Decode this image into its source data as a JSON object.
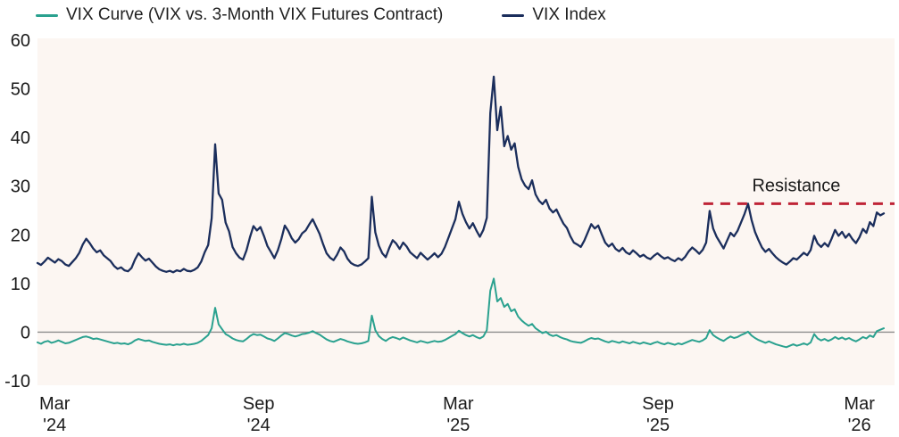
{
  "legend": {
    "items": [
      {
        "label": "VIX Curve (VIX vs. 3-Month VIX Futures Contract)",
        "color": "#2aa18f"
      },
      {
        "label": "VIX Index",
        "color": "#1b2e5c"
      }
    ]
  },
  "colors": {
    "page_bg": "#ffffff",
    "plot_bg": "#fcf6f2",
    "axis_text": "#1a1a1a",
    "zero_line": "#8d8d8d",
    "vix_curve": "#2aa18f",
    "vix_index": "#1b2e5c",
    "resistance": "#bf2437"
  },
  "chart_data": {
    "type": "line",
    "title": "",
    "xlabel": "",
    "ylabel": "",
    "ylim": [
      -10,
      60
    ],
    "grid": false,
    "legend_position": "top",
    "zero_line": 0,
    "y_ticks": [
      60,
      50,
      40,
      30,
      20,
      10,
      0,
      -10
    ],
    "x_ticks": [
      {
        "line1": "Mar",
        "line2": "'24",
        "frac": 0.02
      },
      {
        "line1": "Sep",
        "line2": "'24",
        "frac": 0.258
      },
      {
        "line1": "Mar",
        "line2": "'25",
        "frac": 0.491
      },
      {
        "line1": "Sep",
        "line2": "'25",
        "frac": 0.724
      },
      {
        "line1": "Mar",
        "line2": "'26",
        "frac": 0.959
      }
    ],
    "annotation": {
      "label": "Resistance",
      "level": 26.4,
      "x_start_frac": 0.777,
      "x_end_frac": 1.0,
      "style": "dashed",
      "color": "#bf2437"
    },
    "series": [
      {
        "name": "VIX Index",
        "color": "#1b2e5c",
        "values": [
          14.2,
          13.8,
          14.5,
          15.3,
          14.8,
          14.3,
          15.0,
          14.6,
          13.9,
          13.6,
          14.4,
          15.2,
          16.3,
          18.0,
          19.2,
          18.3,
          17.2,
          16.4,
          16.8,
          15.8,
          15.2,
          14.6,
          13.6,
          13.0,
          13.3,
          12.7,
          12.5,
          13.2,
          14.9,
          16.2,
          15.4,
          14.7,
          15.1,
          14.3,
          13.5,
          12.9,
          12.6,
          12.4,
          12.6,
          12.3,
          12.7,
          12.5,
          13.0,
          12.6,
          12.5,
          12.8,
          13.3,
          14.5,
          16.4,
          17.9,
          23.4,
          38.6,
          28.5,
          27.2,
          22.5,
          20.7,
          17.5,
          16.2,
          15.3,
          14.9,
          16.8,
          19.5,
          21.8,
          20.9,
          21.6,
          19.8,
          17.7,
          16.5,
          15.2,
          16.8,
          19.1,
          21.9,
          20.8,
          19.3,
          18.4,
          19.1,
          20.3,
          20.9,
          22.1,
          23.2,
          21.7,
          20.2,
          18.1,
          16.2,
          15.3,
          14.8,
          15.9,
          17.4,
          16.6,
          15.1,
          14.2,
          13.8,
          13.6,
          13.9,
          14.5,
          15.2,
          27.8,
          20.5,
          17.8,
          16.2,
          15.4,
          17.3,
          18.9,
          18.2,
          17.1,
          18.4,
          17.6,
          16.4,
          15.8,
          15.2,
          16.3,
          15.6,
          14.9,
          15.5,
          16.2,
          15.4,
          16.1,
          17.5,
          19.4,
          21.3,
          23.2,
          26.8,
          24.3,
          22.6,
          21.3,
          22.4,
          20.9,
          19.6,
          21.0,
          23.5,
          45.0,
          52.5,
          41.5,
          46.3,
          38.2,
          40.3,
          37.5,
          38.8,
          34.0,
          31.4,
          30.1,
          29.4,
          31.2,
          28.3,
          27.0,
          26.3,
          27.2,
          25.4,
          24.6,
          25.2,
          23.7,
          22.3,
          21.4,
          19.7,
          18.4,
          18.0,
          17.5,
          18.8,
          20.5,
          22.2,
          21.3,
          21.9,
          20.1,
          18.4,
          17.6,
          18.2,
          17.1,
          16.6,
          17.3,
          16.4,
          16.0,
          16.8,
          16.2,
          15.5,
          15.9,
          15.3,
          15.0,
          15.7,
          16.2,
          15.6,
          15.1,
          15.4,
          14.9,
          14.6,
          15.2,
          14.8,
          15.5,
          16.6,
          17.4,
          16.8,
          16.1,
          16.9,
          18.4,
          24.9,
          21.3,
          19.6,
          18.4,
          17.2,
          18.8,
          20.4,
          19.7,
          20.8,
          22.5,
          24.3,
          26.4,
          23.1,
          20.6,
          18.9,
          17.4,
          16.5,
          17.1,
          16.2,
          15.4,
          14.8,
          14.3,
          13.9,
          14.5,
          15.2,
          14.9,
          15.6,
          16.3,
          15.8,
          16.9,
          19.8,
          18.2,
          17.5,
          18.3,
          17.6,
          19.2,
          21.0,
          19.8,
          20.6,
          19.4,
          20.2,
          19.1,
          18.3,
          19.5,
          21.2,
          20.4,
          22.6,
          21.8,
          24.6,
          24.0,
          24.4
        ]
      },
      {
        "name": "VIX Curve (VIX vs. 3-Month VIX Futures Contract)",
        "color": "#2aa18f",
        "values": [
          -2.1,
          -2.4,
          -2.0,
          -1.8,
          -2.2,
          -2.0,
          -1.7,
          -2.0,
          -2.3,
          -2.2,
          -1.9,
          -1.6,
          -1.3,
          -1.0,
          -0.9,
          -1.1,
          -1.4,
          -1.3,
          -1.5,
          -1.7,
          -1.9,
          -2.1,
          -2.3,
          -2.2,
          -2.4,
          -2.3,
          -2.5,
          -2.2,
          -1.7,
          -1.4,
          -1.6,
          -1.8,
          -1.7,
          -2.0,
          -2.2,
          -2.4,
          -2.5,
          -2.6,
          -2.5,
          -2.7,
          -2.5,
          -2.6,
          -2.4,
          -2.6,
          -2.5,
          -2.4,
          -2.2,
          -1.8,
          -1.2,
          -0.6,
          0.8,
          5.0,
          1.6,
          0.6,
          -0.4,
          -0.8,
          -1.3,
          -1.6,
          -1.8,
          -1.9,
          -1.4,
          -0.8,
          -0.4,
          -0.6,
          -0.5,
          -0.9,
          -1.3,
          -1.5,
          -1.8,
          -1.3,
          -0.7,
          -0.2,
          -0.4,
          -0.7,
          -0.9,
          -0.7,
          -0.4,
          -0.3,
          -0.1,
          0.2,
          -0.2,
          -0.5,
          -1.0,
          -1.5,
          -1.8,
          -2.0,
          -1.7,
          -1.4,
          -1.6,
          -1.9,
          -2.1,
          -2.3,
          -2.4,
          -2.3,
          -2.1,
          -1.8,
          3.4,
          0.4,
          -0.8,
          -1.4,
          -1.8,
          -1.3,
          -1.0,
          -1.2,
          -1.5,
          -1.1,
          -1.4,
          -1.7,
          -1.9,
          -2.1,
          -1.8,
          -2.0,
          -2.2,
          -2.0,
          -1.8,
          -2.0,
          -1.9,
          -1.6,
          -1.2,
          -0.8,
          -0.4,
          0.3,
          -0.2,
          -0.6,
          -0.9,
          -0.6,
          -1.0,
          -1.3,
          -0.9,
          0.4,
          8.5,
          11.0,
          6.3,
          7.0,
          5.2,
          5.8,
          4.3,
          4.7,
          3.2,
          2.4,
          1.8,
          1.3,
          1.7,
          0.8,
          0.3,
          -0.2,
          0.1,
          -0.5,
          -0.8,
          -0.6,
          -1.0,
          -1.3,
          -1.5,
          -1.8,
          -2.0,
          -2.1,
          -2.2,
          -1.9,
          -1.5,
          -1.2,
          -1.4,
          -1.3,
          -1.6,
          -1.9,
          -2.1,
          -1.8,
          -2.0,
          -2.2,
          -1.9,
          -2.1,
          -2.3,
          -2.0,
          -2.2,
          -2.4,
          -2.1,
          -2.3,
          -2.5,
          -2.2,
          -2.0,
          -2.3,
          -2.5,
          -2.2,
          -2.4,
          -2.6,
          -2.3,
          -2.5,
          -2.2,
          -1.9,
          -1.6,
          -1.8,
          -2.0,
          -1.7,
          -1.2,
          0.4,
          -0.6,
          -1.1,
          -1.5,
          -1.8,
          -1.3,
          -0.9,
          -1.2,
          -1.0,
          -0.6,
          -0.3,
          0.1,
          -0.7,
          -1.2,
          -1.6,
          -1.9,
          -2.2,
          -1.9,
          -2.2,
          -2.5,
          -2.7,
          -2.9,
          -3.1,
          -2.8,
          -2.5,
          -2.8,
          -2.6,
          -2.3,
          -2.6,
          -2.1,
          -0.4,
          -1.3,
          -1.7,
          -1.4,
          -1.8,
          -1.5,
          -1.0,
          -1.4,
          -1.1,
          -1.5,
          -1.2,
          -1.6,
          -1.9,
          -1.5,
          -1.0,
          -1.3,
          -0.7,
          -1.0,
          0.2,
          0.5,
          0.8
        ]
      }
    ]
  }
}
